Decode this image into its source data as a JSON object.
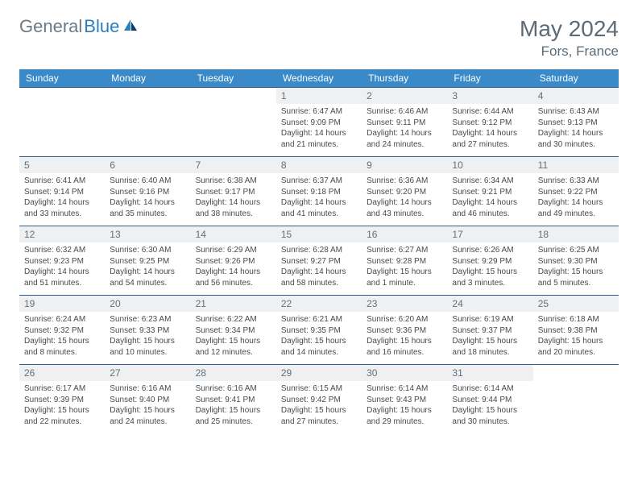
{
  "brand": {
    "left": "General",
    "right": "Blue"
  },
  "title": "May 2024",
  "location": "Fors, France",
  "colors": {
    "header_bg": "#3a8ac9",
    "header_text": "#ffffff",
    "row_border": "#2f5d87",
    "daynum_bg": "#eef0f1",
    "text_muted": "#5d6b76"
  },
  "weekdays": [
    "Sunday",
    "Monday",
    "Tuesday",
    "Wednesday",
    "Thursday",
    "Friday",
    "Saturday"
  ],
  "weeks": [
    [
      null,
      null,
      null,
      {
        "n": "1",
        "lines": [
          "Sunrise: 6:47 AM",
          "Sunset: 9:09 PM",
          "Daylight: 14 hours",
          "and 21 minutes."
        ]
      },
      {
        "n": "2",
        "lines": [
          "Sunrise: 6:46 AM",
          "Sunset: 9:11 PM",
          "Daylight: 14 hours",
          "and 24 minutes."
        ]
      },
      {
        "n": "3",
        "lines": [
          "Sunrise: 6:44 AM",
          "Sunset: 9:12 PM",
          "Daylight: 14 hours",
          "and 27 minutes."
        ]
      },
      {
        "n": "4",
        "lines": [
          "Sunrise: 6:43 AM",
          "Sunset: 9:13 PM",
          "Daylight: 14 hours",
          "and 30 minutes."
        ]
      }
    ],
    [
      {
        "n": "5",
        "lines": [
          "Sunrise: 6:41 AM",
          "Sunset: 9:14 PM",
          "Daylight: 14 hours",
          "and 33 minutes."
        ]
      },
      {
        "n": "6",
        "lines": [
          "Sunrise: 6:40 AM",
          "Sunset: 9:16 PM",
          "Daylight: 14 hours",
          "and 35 minutes."
        ]
      },
      {
        "n": "7",
        "lines": [
          "Sunrise: 6:38 AM",
          "Sunset: 9:17 PM",
          "Daylight: 14 hours",
          "and 38 minutes."
        ]
      },
      {
        "n": "8",
        "lines": [
          "Sunrise: 6:37 AM",
          "Sunset: 9:18 PM",
          "Daylight: 14 hours",
          "and 41 minutes."
        ]
      },
      {
        "n": "9",
        "lines": [
          "Sunrise: 6:36 AM",
          "Sunset: 9:20 PM",
          "Daylight: 14 hours",
          "and 43 minutes."
        ]
      },
      {
        "n": "10",
        "lines": [
          "Sunrise: 6:34 AM",
          "Sunset: 9:21 PM",
          "Daylight: 14 hours",
          "and 46 minutes."
        ]
      },
      {
        "n": "11",
        "lines": [
          "Sunrise: 6:33 AM",
          "Sunset: 9:22 PM",
          "Daylight: 14 hours",
          "and 49 minutes."
        ]
      }
    ],
    [
      {
        "n": "12",
        "lines": [
          "Sunrise: 6:32 AM",
          "Sunset: 9:23 PM",
          "Daylight: 14 hours",
          "and 51 minutes."
        ]
      },
      {
        "n": "13",
        "lines": [
          "Sunrise: 6:30 AM",
          "Sunset: 9:25 PM",
          "Daylight: 14 hours",
          "and 54 minutes."
        ]
      },
      {
        "n": "14",
        "lines": [
          "Sunrise: 6:29 AM",
          "Sunset: 9:26 PM",
          "Daylight: 14 hours",
          "and 56 minutes."
        ]
      },
      {
        "n": "15",
        "lines": [
          "Sunrise: 6:28 AM",
          "Sunset: 9:27 PM",
          "Daylight: 14 hours",
          "and 58 minutes."
        ]
      },
      {
        "n": "16",
        "lines": [
          "Sunrise: 6:27 AM",
          "Sunset: 9:28 PM",
          "Daylight: 15 hours",
          "and 1 minute."
        ]
      },
      {
        "n": "17",
        "lines": [
          "Sunrise: 6:26 AM",
          "Sunset: 9:29 PM",
          "Daylight: 15 hours",
          "and 3 minutes."
        ]
      },
      {
        "n": "18",
        "lines": [
          "Sunrise: 6:25 AM",
          "Sunset: 9:30 PM",
          "Daylight: 15 hours",
          "and 5 minutes."
        ]
      }
    ],
    [
      {
        "n": "19",
        "lines": [
          "Sunrise: 6:24 AM",
          "Sunset: 9:32 PM",
          "Daylight: 15 hours",
          "and 8 minutes."
        ]
      },
      {
        "n": "20",
        "lines": [
          "Sunrise: 6:23 AM",
          "Sunset: 9:33 PM",
          "Daylight: 15 hours",
          "and 10 minutes."
        ]
      },
      {
        "n": "21",
        "lines": [
          "Sunrise: 6:22 AM",
          "Sunset: 9:34 PM",
          "Daylight: 15 hours",
          "and 12 minutes."
        ]
      },
      {
        "n": "22",
        "lines": [
          "Sunrise: 6:21 AM",
          "Sunset: 9:35 PM",
          "Daylight: 15 hours",
          "and 14 minutes."
        ]
      },
      {
        "n": "23",
        "lines": [
          "Sunrise: 6:20 AM",
          "Sunset: 9:36 PM",
          "Daylight: 15 hours",
          "and 16 minutes."
        ]
      },
      {
        "n": "24",
        "lines": [
          "Sunrise: 6:19 AM",
          "Sunset: 9:37 PM",
          "Daylight: 15 hours",
          "and 18 minutes."
        ]
      },
      {
        "n": "25",
        "lines": [
          "Sunrise: 6:18 AM",
          "Sunset: 9:38 PM",
          "Daylight: 15 hours",
          "and 20 minutes."
        ]
      }
    ],
    [
      {
        "n": "26",
        "lines": [
          "Sunrise: 6:17 AM",
          "Sunset: 9:39 PM",
          "Daylight: 15 hours",
          "and 22 minutes."
        ]
      },
      {
        "n": "27",
        "lines": [
          "Sunrise: 6:16 AM",
          "Sunset: 9:40 PM",
          "Daylight: 15 hours",
          "and 24 minutes."
        ]
      },
      {
        "n": "28",
        "lines": [
          "Sunrise: 6:16 AM",
          "Sunset: 9:41 PM",
          "Daylight: 15 hours",
          "and 25 minutes."
        ]
      },
      {
        "n": "29",
        "lines": [
          "Sunrise: 6:15 AM",
          "Sunset: 9:42 PM",
          "Daylight: 15 hours",
          "and 27 minutes."
        ]
      },
      {
        "n": "30",
        "lines": [
          "Sunrise: 6:14 AM",
          "Sunset: 9:43 PM",
          "Daylight: 15 hours",
          "and 29 minutes."
        ]
      },
      {
        "n": "31",
        "lines": [
          "Sunrise: 6:14 AM",
          "Sunset: 9:44 PM",
          "Daylight: 15 hours",
          "and 30 minutes."
        ]
      },
      null
    ]
  ]
}
